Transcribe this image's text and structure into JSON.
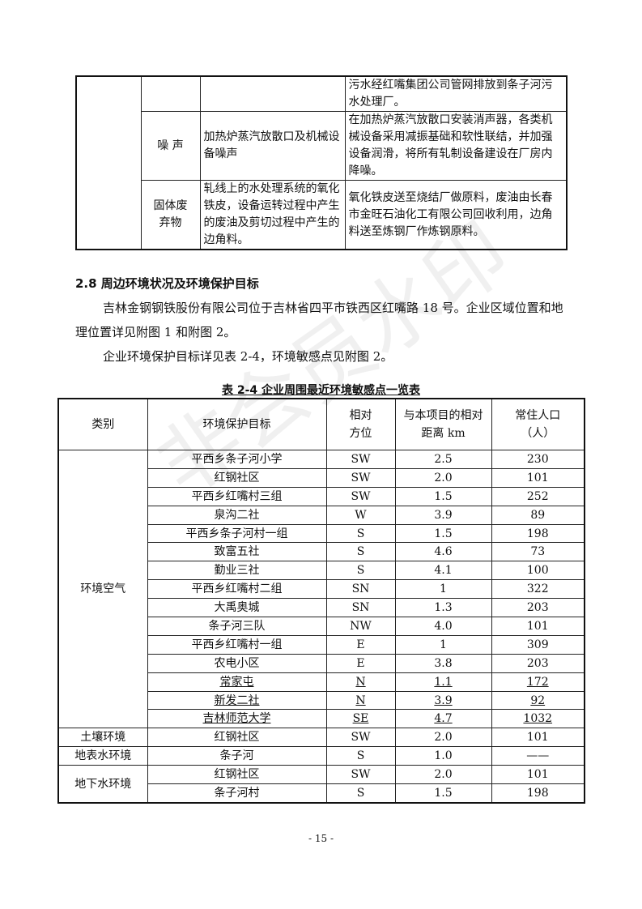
{
  "top_table": {
    "rows": [
      {
        "type": "",
        "source": "",
        "measure": "污水经红嘴集团公司管网排放到条子河污水处理厂。"
      },
      {
        "type": "噪 声",
        "source": "加热炉蒸汽放散口及机械设备噪声",
        "measure": "在加热炉蒸汽放散口安装消声器，各类机械设备采用减振基础和软性联结，并加强设备润滑，将所有轧制设备建设在厂房内降噪。"
      },
      {
        "type": "固体废弃物",
        "source": "轧线上的水处理系统的氧化铁皮，设备运转过程中产生的废油及剪切过程中产生的边角料。",
        "measure": "氧化铁皮送至烧结厂做原料，废油由长春市金旺石油化工有限公司回收利用，边角料送至炼钢厂作炼钢原料。"
      }
    ]
  },
  "section": {
    "heading": "2.8 周边环境状况及环境保护目标",
    "paragraphs": [
      "吉林金钢钢铁股份有限公司位于吉林省四平市铁西区红嘴路 18 号。企业区域位置和地理位置详见附图 1 和附图 2。",
      "企业环境保护目标详见表 2-4，环境敏感点见附图 2。"
    ]
  },
  "table": {
    "caption": "表 2-4 企业周围最近环境敏感点一览表",
    "headers": [
      "类别",
      "环境保护目标",
      "相对方位",
      "与本项目的相对距离 km",
      "常住人口（人）"
    ],
    "groups": [
      {
        "category": "环境空气",
        "rows": [
          [
            "平西乡条子河小学",
            "SW",
            "2.5",
            "230"
          ],
          [
            "红钢社区",
            "SW",
            "2.0",
            "101"
          ],
          [
            "平西乡红嘴村三组",
            "SW",
            "1.5",
            "252"
          ],
          [
            "泉沟二社",
            "W",
            "3.9",
            "89"
          ],
          [
            "平西乡条子河村一组",
            "S",
            "1.5",
            "198"
          ],
          [
            "致富五社",
            "S",
            "4.6",
            "73"
          ],
          [
            "勤业三社",
            "S",
            "4.1",
            "100"
          ],
          [
            "平西乡红嘴村二组",
            "SN",
            "1",
            "322"
          ],
          [
            "大禹奥城",
            "SN",
            "1.3",
            "203"
          ],
          [
            "条子河三队",
            "NW",
            "4.0",
            "101"
          ],
          [
            "平西乡红嘴村一组",
            "E",
            "1",
            "309"
          ],
          [
            "农电小区",
            "E",
            "3.8",
            "203"
          ],
          [
            "常家屯",
            "N",
            "1.1",
            "172"
          ],
          [
            "新发二社",
            "N",
            "3.9",
            "92"
          ],
          [
            "吉林师范大学",
            "SE",
            "4.7",
            "1032"
          ]
        ]
      },
      {
        "category": "土壤环境",
        "rows": [
          [
            "红钢社区",
            "SW",
            "2.0",
            "101"
          ]
        ]
      },
      {
        "category": "地表水环境",
        "rows": [
          [
            "条子河",
            "S",
            "1.0",
            "——"
          ]
        ]
      },
      {
        "category": "地下水环境",
        "rows": [
          [
            "红钢社区",
            "SW",
            "2.0",
            "101"
          ],
          [
            "条子河村",
            "S",
            "1.5",
            "198"
          ]
        ]
      }
    ],
    "underlined_rows": [
      "常家屯",
      "新发二社",
      "吉林师范大学"
    ]
  },
  "page_number": "- 15 -",
  "watermark": "非会员水印"
}
